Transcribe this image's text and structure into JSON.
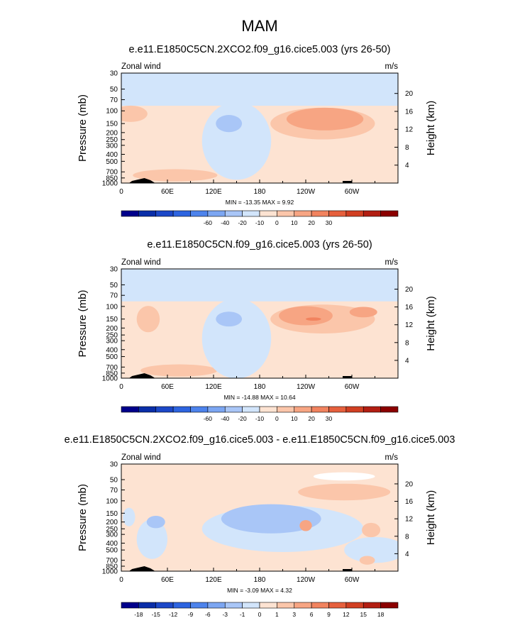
{
  "figure": {
    "title": "MAM"
  },
  "chart_data": [
    {
      "type": "contour",
      "title": "e.e11.E1850C5CN.2XCO2.f09_g16.cice5.003 (yrs 26-50)",
      "field": "Zonal wind",
      "units": "m/s",
      "xlabel": "",
      "ylabel": "Pressure (mb)",
      "y2label": "Height (km)",
      "x_ticks": [
        "0",
        "60E",
        "120E",
        "180",
        "120W",
        "60W"
      ],
      "x_tick_lons": [
        0,
        60,
        120,
        180,
        240,
        300
      ],
      "xlim": [
        0,
        360
      ],
      "y_ticks": [
        "30",
        "50",
        "70",
        "100",
        "150",
        "200",
        "250",
        "300",
        "400",
        "500",
        "700",
        "850",
        "1000"
      ],
      "y_tick_p": [
        30,
        50,
        70,
        100,
        150,
        200,
        250,
        300,
        400,
        500,
        700,
        850,
        1000
      ],
      "ylim": [
        30,
        1000
      ],
      "y2_ticks": [
        "20",
        "16",
        "12",
        "8",
        "4"
      ],
      "y2_tick_km": [
        20,
        16,
        12,
        8,
        4
      ],
      "min": -13.35,
      "max": 9.92,
      "stats_label": "MIN = -13.35  MAX =   9.92",
      "colorbar_ticks": [
        "-60",
        "-40",
        "-20",
        "-10",
        "0",
        "10",
        "20",
        "30"
      ],
      "colorbar_colors": [
        "#00008b",
        "#0a2ea8",
        "#1c48c8",
        "#2d64e0",
        "#4d83ec",
        "#7ca6f2",
        "#a9c6f7",
        "#d2e5fb",
        "#fde3d2",
        "#fbc6aa",
        "#f7a583",
        "#f1835f",
        "#e6603d",
        "#d13f22",
        "#b21e12",
        "#8b0000"
      ],
      "regions": [
        {
          "level": "pos1",
          "shape": "band",
          "lon": [
            0,
            360
          ],
          "p": [
            85,
            1000
          ]
        },
        {
          "level": "pos2",
          "shape": "ellipse",
          "lon_center": 12,
          "p_center": 110,
          "lon_half": 22,
          "p_half": 28
        },
        {
          "level": "pos2",
          "shape": "ellipse",
          "lon_center": 262,
          "p_center": 150,
          "lon_half": 68,
          "p_half": 70
        },
        {
          "level": "pos3",
          "shape": "ellipse",
          "lon_center": 265,
          "p_center": 130,
          "lon_half": 50,
          "p_half": 45
        },
        {
          "level": "pos2",
          "shape": "ellipse",
          "lon_center": 70,
          "p_center": 780,
          "lon_half": 55,
          "p_half": 150
        },
        {
          "level": "neg1",
          "shape": "ellipse",
          "lon_center": 150,
          "p_center": 260,
          "lon_half": 45,
          "p_half": 220
        },
        {
          "level": "neg2",
          "shape": "ellipse",
          "lon_center": 140,
          "p_center": 150,
          "lon_half": 17,
          "p_half": 40
        }
      ]
    },
    {
      "type": "contour",
      "title": "e.e11.E1850C5CN.f09_g16.cice5.003 (yrs 26-50)",
      "field": "Zonal wind",
      "units": "m/s",
      "xlabel": "",
      "ylabel": "Pressure (mb)",
      "y2label": "Height (km)",
      "x_ticks": [
        "0",
        "60E",
        "120E",
        "180",
        "120W",
        "60W"
      ],
      "x_tick_lons": [
        0,
        60,
        120,
        180,
        240,
        300
      ],
      "xlim": [
        0,
        360
      ],
      "y_ticks": [
        "30",
        "50",
        "70",
        "100",
        "150",
        "200",
        "250",
        "300",
        "400",
        "500",
        "700",
        "850",
        "1000"
      ],
      "y_tick_p": [
        30,
        50,
        70,
        100,
        150,
        200,
        250,
        300,
        400,
        500,
        700,
        850,
        1000
      ],
      "ylim": [
        30,
        1000
      ],
      "y2_ticks": [
        "20",
        "16",
        "12",
        "8",
        "4"
      ],
      "y2_tick_km": [
        20,
        16,
        12,
        8,
        4
      ],
      "min": -14.88,
      "max": 10.64,
      "stats_label": "MIN = -14.88  MAX =  10.64",
      "colorbar_ticks": [
        "-60",
        "-40",
        "-20",
        "-10",
        "0",
        "10",
        "20",
        "30"
      ],
      "colorbar_colors": [
        "#00008b",
        "#0a2ea8",
        "#1c48c8",
        "#2d64e0",
        "#4d83ec",
        "#7ca6f2",
        "#a9c6f7",
        "#d2e5fb",
        "#fde3d2",
        "#fbc6aa",
        "#f7a583",
        "#f1835f",
        "#e6603d",
        "#d13f22",
        "#b21e12",
        "#8b0000"
      ],
      "regions": [
        {
          "level": "pos1",
          "shape": "band",
          "lon": [
            0,
            360
          ],
          "p": [
            85,
            1000
          ]
        },
        {
          "level": "pos2",
          "shape": "ellipse",
          "lon_center": 35,
          "p_center": 150,
          "lon_half": 15,
          "p_half": 60
        },
        {
          "level": "pos2",
          "shape": "ellipse",
          "lon_center": 262,
          "p_center": 150,
          "lon_half": 68,
          "p_half": 65
        },
        {
          "level": "pos3",
          "shape": "ellipse",
          "lon_center": 240,
          "p_center": 135,
          "lon_half": 35,
          "p_half": 40
        },
        {
          "level": "pos3",
          "shape": "ellipse",
          "lon_center": 315,
          "p_center": 120,
          "lon_half": 18,
          "p_half": 20
        },
        {
          "level": "pos4",
          "shape": "ellipse",
          "lon_center": 250,
          "p_center": 150,
          "lon_half": 10,
          "p_half": 8
        },
        {
          "level": "pos2",
          "shape": "ellipse",
          "lon_center": 75,
          "p_center": 780,
          "lon_half": 50,
          "p_half": 150
        },
        {
          "level": "neg1",
          "shape": "ellipse",
          "lon_center": 150,
          "p_center": 280,
          "lon_half": 45,
          "p_half": 240
        },
        {
          "level": "neg2",
          "shape": "ellipse",
          "lon_center": 140,
          "p_center": 150,
          "lon_half": 17,
          "p_half": 35
        },
        {
          "level": "neg1",
          "shape": "band",
          "lon": [
            0,
            360
          ],
          "p": [
            30,
            32
          ]
        }
      ]
    },
    {
      "type": "contour",
      "title": "e.e11.E1850C5CN.2XCO2.f09_g16.cice5.003 - e.e11.E1850C5CN.f09_g16.cice5.003",
      "field": "Zonal wind",
      "units": "m/s",
      "xlabel": "",
      "ylabel": "Pressure (mb)",
      "y2label": "Height (km)",
      "x_ticks": [
        "0",
        "60E",
        "120E",
        "180",
        "120W",
        "60W"
      ],
      "x_tick_lons": [
        0,
        60,
        120,
        180,
        240,
        300
      ],
      "xlim": [
        0,
        360
      ],
      "y_ticks": [
        "30",
        "50",
        "70",
        "100",
        "150",
        "200",
        "250",
        "300",
        "400",
        "500",
        "700",
        "850",
        "1000"
      ],
      "y_tick_p": [
        30,
        50,
        70,
        100,
        150,
        200,
        250,
        300,
        400,
        500,
        700,
        850,
        1000
      ],
      "ylim": [
        30,
        1000
      ],
      "y2_ticks": [
        "20",
        "16",
        "12",
        "8",
        "4"
      ],
      "y2_tick_km": [
        20,
        16,
        12,
        8,
        4
      ],
      "min": -3.09,
      "max": 4.32,
      "stats_label": "MIN = -3.09  MAX =   4.32",
      "colorbar_ticks": [
        "-18",
        "-15",
        "-12",
        "-9",
        "-6",
        "-3",
        "-1",
        "0",
        "1",
        "3",
        "6",
        "9",
        "12",
        "15",
        "18"
      ],
      "colorbar_colors": [
        "#00008b",
        "#0a2ea8",
        "#1c48c8",
        "#2d64e0",
        "#4d83ec",
        "#7ca6f2",
        "#a9c6f7",
        "#d2e5fb",
        "#fde3d2",
        "#fbc6aa",
        "#f7a583",
        "#f1835f",
        "#e6603d",
        "#d13f22",
        "#b21e12",
        "#8b0000"
      ],
      "base_level": "pos1",
      "regions": [
        {
          "level": "neg1",
          "shape": "ellipse",
          "lon_center": 210,
          "p_center": 250,
          "lon_half": 105,
          "p_half": 160
        },
        {
          "level": "neg1",
          "shape": "ellipse",
          "lon_center": 40,
          "p_center": 350,
          "lon_half": 20,
          "p_half": 200
        },
        {
          "level": "neg1",
          "shape": "ellipse",
          "lon_center": 330,
          "p_center": 500,
          "lon_half": 40,
          "p_half": 200
        },
        {
          "level": "neg2",
          "shape": "ellipse",
          "lon_center": 195,
          "p_center": 180,
          "lon_half": 65,
          "p_half": 80
        },
        {
          "level": "neg2",
          "shape": "ellipse",
          "lon_center": 45,
          "p_center": 200,
          "lon_half": 12,
          "p_half": 40
        },
        {
          "level": "neg1",
          "shape": "ellipse",
          "lon_center": 10,
          "p_center": 170,
          "lon_half": 8,
          "p_half": 50
        },
        {
          "level": "pos2",
          "shape": "ellipse",
          "lon_center": 290,
          "p_center": 75,
          "lon_half": 60,
          "p_half": 20
        },
        {
          "level": "pos3",
          "shape": "ellipse",
          "lon_center": 240,
          "p_center": 225,
          "lon_half": 8,
          "p_half": 40
        },
        {
          "level": "pos2",
          "shape": "ellipse",
          "lon_center": 325,
          "p_center": 260,
          "lon_half": 12,
          "p_half": 60
        },
        {
          "level": "pos2",
          "shape": "ellipse",
          "lon_center": 320,
          "p_center": 700,
          "lon_half": 10,
          "p_half": 100
        },
        {
          "level": "zero",
          "shape": "ellipse",
          "lon_center": 290,
          "p_center": 45,
          "lon_half": 40,
          "p_half": 6
        }
      ]
    }
  ]
}
